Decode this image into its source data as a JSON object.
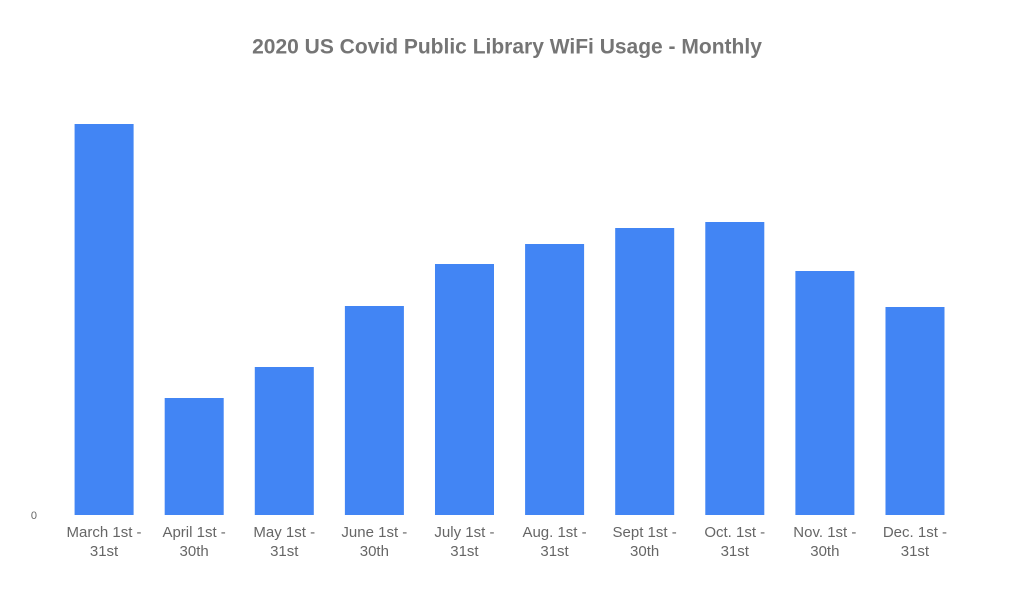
{
  "chart_data": {
    "type": "bar",
    "title": "2020 US Covid Public Library WiFi Usage - Monthly",
    "categories": [
      "March 1st - 31st",
      "April 1st - 30th",
      "May 1st - 31st",
      "June 1st - 30th",
      "July 1st - 31st",
      "Aug. 1st - 31st",
      "Sept 1st - 30th",
      "Oct. 1st - 31st",
      "Nov. 1st - 30th",
      "Dec. 1st - 31st"
    ],
    "values": [
      391,
      117,
      148,
      209,
      251,
      271,
      287,
      293,
      244,
      208
    ],
    "color": "#4285f4",
    "ylim": [
      0,
      430
    ],
    "yticks": [
      0
    ],
    "grid": false
  }
}
